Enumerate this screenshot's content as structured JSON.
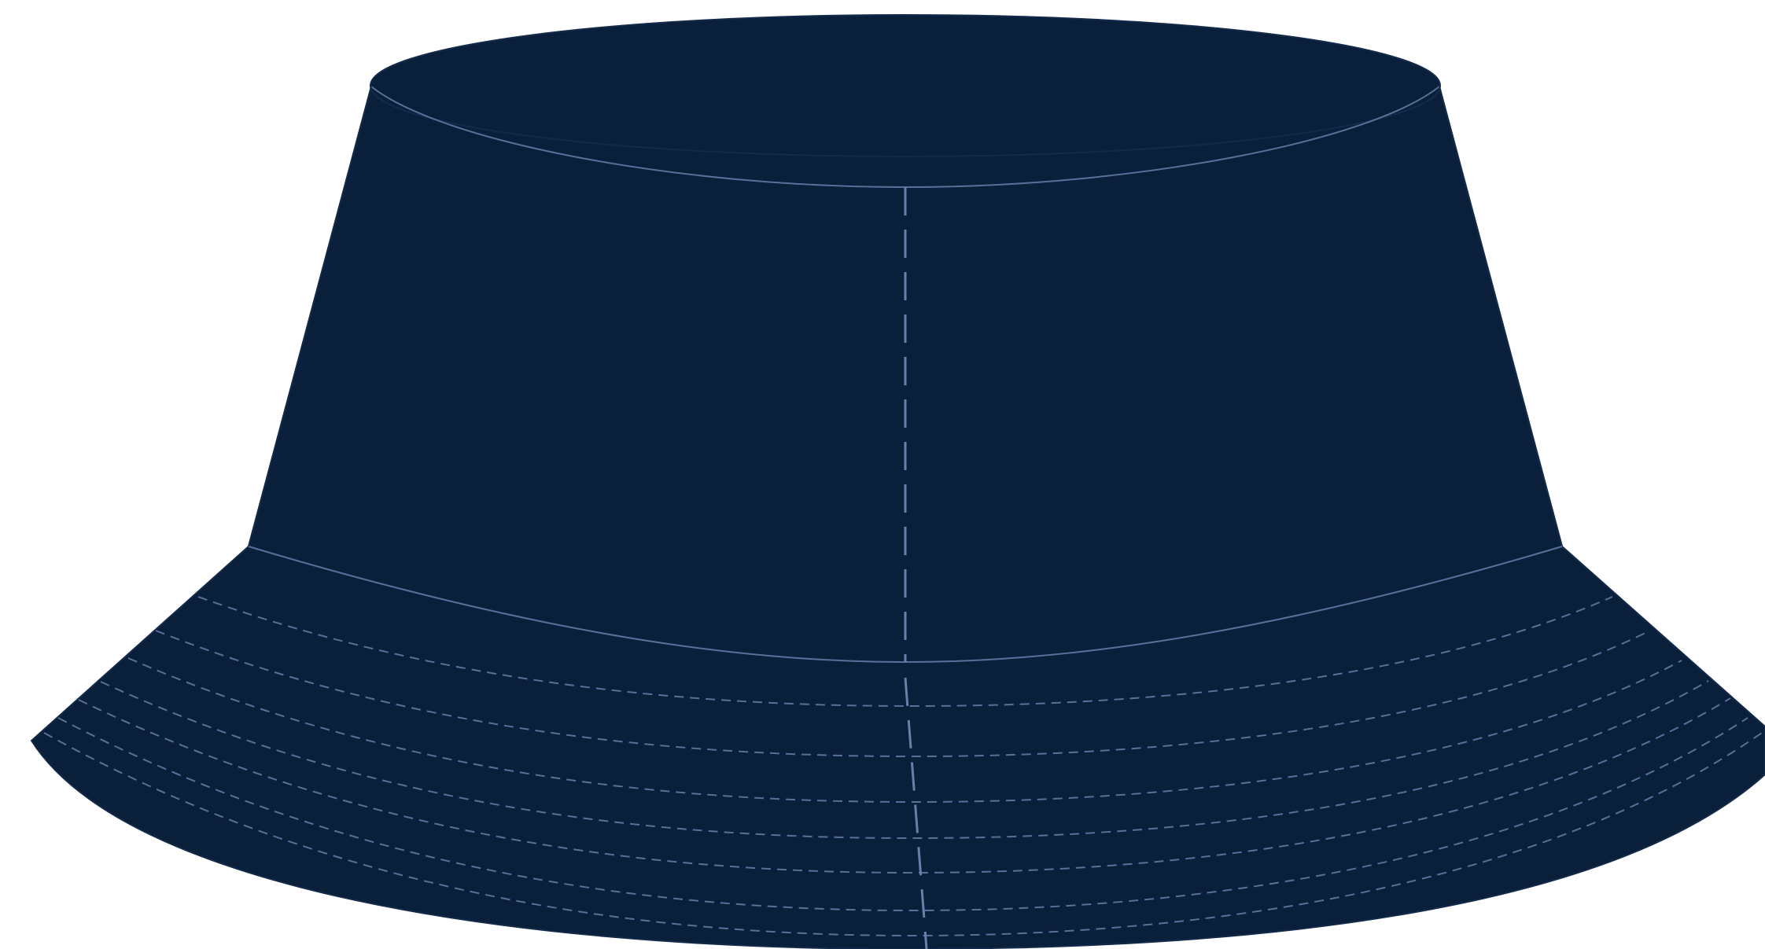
{
  "image": {
    "subject": "bucket-hat",
    "colors": {
      "background": "#ffffff",
      "fabric": "#0a1f3a",
      "fabric_edge": "#142a4a",
      "stitch": "#5a6f99",
      "stitch_light": "#6a80aa"
    }
  }
}
